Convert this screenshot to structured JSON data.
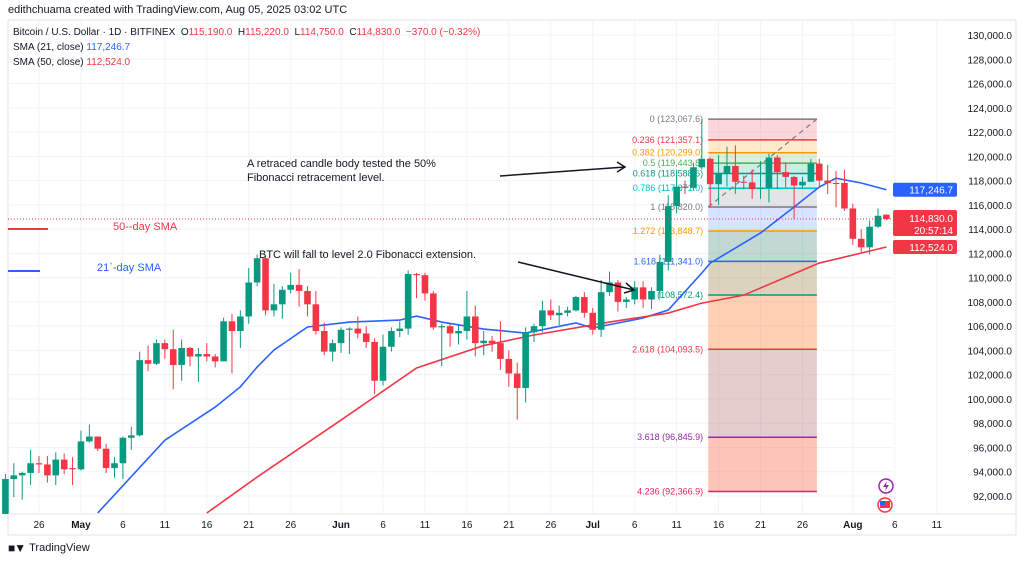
{
  "credit": "edithchuama created with TradingView.com, Aug 05, 2025 03:02 UTC",
  "legend": {
    "symbol": "Bitcoin / U.S. Dollar · 1D · BITFINEX",
    "o": "115,190.0",
    "h": "115,220.0",
    "l": "114,750.0",
    "c": "114,830.0",
    "change": "−370.0 (−0.32%)",
    "sma21_label": "SMA (21, close)",
    "sma21_value": "117,246.7",
    "sma50_label": "SMA (50, close)",
    "sma50_value": "112,524.0"
  },
  "footer": {
    "brand": "TradingView",
    "logo": "TV"
  },
  "colors": {
    "up": "#089981",
    "down": "#f23645",
    "sma21": "#2962ff",
    "sma50": "#f23645",
    "grid": "#f0f3fa"
  },
  "icons": [
    "lightning-event-icon",
    "us-flag-economic-event-icon"
  ],
  "chart_data": {
    "type": "candlestick",
    "ylim": [
      91000,
      131000
    ],
    "y_ticks": [
      130000,
      128000,
      126000,
      124000,
      122000,
      120000,
      118000,
      116000,
      114000,
      112000,
      110000,
      108000,
      106000,
      104000,
      102000,
      100000,
      98000,
      96000,
      94000,
      92000
    ],
    "y_tick_labels": [
      "130,000.0",
      "128,000.0",
      "126,000.0",
      "124,000.0",
      "122,000.0",
      "120,000.0",
      "118,000.0",
      "116,000.0",
      "114,000.0",
      "112,000.0",
      "110,000.0",
      "108,000.0",
      "106,000.0",
      "104,000.0",
      "102,000.0",
      "100,000.0",
      "98,000.0",
      "96,000.0",
      "94,000.0",
      "92,000.0"
    ],
    "x_ticks": [
      {
        "date": "2025-04-26",
        "label": "26"
      },
      {
        "date": "2025-05-01",
        "label": "May"
      },
      {
        "date": "2025-05-06",
        "label": "6"
      },
      {
        "date": "2025-05-11",
        "label": "11"
      },
      {
        "date": "2025-05-16",
        "label": "16"
      },
      {
        "date": "2025-05-21",
        "label": "21"
      },
      {
        "date": "2025-05-26",
        "label": "26"
      },
      {
        "date": "2025-06-01",
        "label": "Jun"
      },
      {
        "date": "2025-06-06",
        "label": "6"
      },
      {
        "date": "2025-06-11",
        "label": "11"
      },
      {
        "date": "2025-06-16",
        "label": "16"
      },
      {
        "date": "2025-06-21",
        "label": "21"
      },
      {
        "date": "2025-06-26",
        "label": "26"
      },
      {
        "date": "2025-07-01",
        "label": "Jul"
      },
      {
        "date": "2025-07-06",
        "label": "6"
      },
      {
        "date": "2025-07-11",
        "label": "11"
      },
      {
        "date": "2025-07-16",
        "label": "16"
      },
      {
        "date": "2025-07-21",
        "label": "21"
      },
      {
        "date": "2025-07-26",
        "label": "26"
      },
      {
        "date": "2025-08-01",
        "label": "Aug"
      },
      {
        "date": "2025-08-06",
        "label": "6"
      },
      {
        "date": "2025-08-11",
        "label": "11"
      }
    ],
    "candles_columns": [
      "date",
      "open",
      "high",
      "low",
      "close"
    ],
    "candles": [
      [
        "2025-04-22",
        87500,
        93800,
        87100,
        93400
      ],
      [
        "2025-04-23",
        93400,
        94700,
        91900,
        93700
      ],
      [
        "2025-04-24",
        93700,
        94000,
        91700,
        93900
      ],
      [
        "2025-04-25",
        93900,
        95800,
        92900,
        94700
      ],
      [
        "2025-04-26",
        94700,
        95300,
        93900,
        94600
      ],
      [
        "2025-04-27",
        94600,
        95300,
        93100,
        93700
      ],
      [
        "2025-04-28",
        93700,
        95600,
        92900,
        95000
      ],
      [
        "2025-04-29",
        95000,
        95500,
        93800,
        94200
      ],
      [
        "2025-04-30",
        94300,
        95200,
        92900,
        94200
      ],
      [
        "2025-05-01",
        94200,
        97400,
        94100,
        96500
      ],
      [
        "2025-05-02",
        96500,
        97900,
        96400,
        96900
      ],
      [
        "2025-05-03",
        96900,
        96900,
        95700,
        95900
      ],
      [
        "2025-05-04",
        95900,
        96300,
        93900,
        94300
      ],
      [
        "2025-05-05",
        94300,
        95200,
        93500,
        94700
      ],
      [
        "2025-05-06",
        94700,
        96900,
        93400,
        96800
      ],
      [
        "2025-05-07",
        96800,
        97700,
        95800,
        97000
      ],
      [
        "2025-05-08",
        97000,
        103900,
        96900,
        103200
      ],
      [
        "2025-05-09",
        103200,
        104400,
        102300,
        102900
      ],
      [
        "2025-05-10",
        102900,
        104900,
        102800,
        104600
      ],
      [
        "2025-05-11",
        104600,
        104900,
        103300,
        104100
      ],
      [
        "2025-05-12",
        104100,
        105700,
        100800,
        102800
      ],
      [
        "2025-05-13",
        102800,
        104900,
        101500,
        104200
      ],
      [
        "2025-05-14",
        104200,
        104300,
        102700,
        103500
      ],
      [
        "2025-05-15",
        103500,
        104200,
        101400,
        103700
      ],
      [
        "2025-05-16",
        103700,
        104600,
        103100,
        103500
      ],
      [
        "2025-05-17",
        103500,
        103700,
        102600,
        103100
      ],
      [
        "2025-05-18",
        103100,
        106700,
        103100,
        106400
      ],
      [
        "2025-05-19",
        106400,
        107000,
        102100,
        105600
      ],
      [
        "2025-05-20",
        105600,
        107300,
        104200,
        106800
      ],
      [
        "2025-05-21",
        106800,
        110800,
        106200,
        109600
      ],
      [
        "2025-05-22",
        109600,
        111900,
        109300,
        111600
      ],
      [
        "2025-05-23",
        111600,
        111800,
        106900,
        107300
      ],
      [
        "2025-05-24",
        107300,
        109500,
        106800,
        107800
      ],
      [
        "2025-05-25",
        107800,
        109300,
        106600,
        109000
      ],
      [
        "2025-05-26",
        109000,
        110400,
        108700,
        109400
      ],
      [
        "2025-05-27",
        109400,
        110700,
        107600,
        108900
      ],
      [
        "2025-05-28",
        108900,
        109300,
        106800,
        107800
      ],
      [
        "2025-05-29",
        107800,
        108900,
        105300,
        105600
      ],
      [
        "2025-05-30",
        105600,
        106300,
        103600,
        103900
      ],
      [
        "2025-05-31",
        103900,
        104900,
        103100,
        104600
      ],
      [
        "2025-06-01",
        104600,
        105900,
        103800,
        105700
      ],
      [
        "2025-06-02",
        105700,
        105900,
        103700,
        105800
      ],
      [
        "2025-06-03",
        105800,
        106800,
        105000,
        105400
      ],
      [
        "2025-06-04",
        105400,
        106000,
        104200,
        104700
      ],
      [
        "2025-06-05",
        104700,
        105000,
        100400,
        101500
      ],
      [
        "2025-06-06",
        101500,
        105300,
        101100,
        104300
      ],
      [
        "2025-06-07",
        104300,
        105900,
        103900,
        105600
      ],
      [
        "2025-06-08",
        105600,
        106400,
        105100,
        105800
      ],
      [
        "2025-06-09",
        105800,
        110600,
        105300,
        110300
      ],
      [
        "2025-06-10",
        110300,
        110400,
        108300,
        110200
      ],
      [
        "2025-06-11",
        110200,
        110400,
        108100,
        108700
      ],
      [
        "2025-06-12",
        108700,
        108900,
        105700,
        105900
      ],
      [
        "2025-06-13",
        105900,
        106200,
        102700,
        106000
      ],
      [
        "2025-06-14",
        106000,
        106200,
        104300,
        105400
      ],
      [
        "2025-06-15",
        105400,
        106100,
        104500,
        105600
      ],
      [
        "2025-06-16",
        105600,
        108900,
        104900,
        106800
      ],
      [
        "2025-06-17",
        106800,
        107700,
        103500,
        104600
      ],
      [
        "2025-06-18",
        104600,
        105600,
        103600,
        104800
      ],
      [
        "2025-06-19",
        104800,
        105200,
        103900,
        104600
      ],
      [
        "2025-06-20",
        104600,
        106400,
        102400,
        103300
      ],
      [
        "2025-06-21",
        103300,
        104000,
        101000,
        102100
      ],
      [
        "2025-06-22",
        102100,
        103000,
        98300,
        100900
      ],
      [
        "2025-06-23",
        100900,
        105900,
        99700,
        105500
      ],
      [
        "2025-06-24",
        105500,
        106200,
        104700,
        106000
      ],
      [
        "2025-06-25",
        106000,
        108100,
        105500,
        107300
      ],
      [
        "2025-06-26",
        107300,
        108200,
        106500,
        106900
      ],
      [
        "2025-06-27",
        106900,
        107700,
        106100,
        107100
      ],
      [
        "2025-06-28",
        107100,
        107600,
        106800,
        107300
      ],
      [
        "2025-06-29",
        107300,
        108500,
        107200,
        108400
      ],
      [
        "2025-06-30",
        108400,
        108800,
        106700,
        107100
      ],
      [
        "2025-07-01",
        107100,
        107500,
        105300,
        105700
      ],
      [
        "2025-07-02",
        105700,
        109800,
        105100,
        108800
      ],
      [
        "2025-07-03",
        108800,
        110500,
        108500,
        109600
      ],
      [
        "2025-07-04",
        109600,
        109800,
        107200,
        108000
      ],
      [
        "2025-07-05",
        108000,
        108400,
        107500,
        108200
      ],
      [
        "2025-07-06",
        108200,
        109700,
        107800,
        109200
      ],
      [
        "2025-07-07",
        109200,
        109700,
        107500,
        108200
      ],
      [
        "2025-07-08",
        108200,
        109200,
        107400,
        108900
      ],
      [
        "2025-07-09",
        108900,
        111900,
        108300,
        111300
      ],
      [
        "2025-07-10",
        111300,
        116800,
        110600,
        115900
      ],
      [
        "2025-07-11",
        115900,
        118900,
        115300,
        117500
      ],
      [
        "2025-07-12",
        117500,
        118000,
        116900,
        117400
      ],
      [
        "2025-07-13",
        117400,
        119500,
        117200,
        119100
      ],
      [
        "2025-07-14",
        119100,
        123067,
        118900,
        119800
      ],
      [
        "2025-07-15",
        119800,
        119900,
        115800,
        117700
      ],
      [
        "2025-07-16",
        117700,
        120100,
        116000,
        118600
      ],
      [
        "2025-07-17",
        118600,
        120800,
        117500,
        119200
      ],
      [
        "2025-07-18",
        119200,
        120900,
        116900,
        117900
      ],
      [
        "2025-07-19",
        117900,
        118400,
        117300,
        117850
      ],
      [
        "2025-07-20",
        117850,
        118900,
        116500,
        117300
      ],
      [
        "2025-07-21",
        117300,
        119600,
        116500,
        117400
      ],
      [
        "2025-07-22",
        117400,
        120200,
        116200,
        119900
      ],
      [
        "2025-07-23",
        119900,
        120100,
        117300,
        118700
      ],
      [
        "2025-07-24",
        118700,
        119500,
        117400,
        118300
      ],
      [
        "2025-07-25",
        118300,
        118400,
        114800,
        117600
      ],
      [
        "2025-07-26",
        117600,
        118300,
        117300,
        117900
      ],
      [
        "2025-07-27",
        117900,
        119800,
        117900,
        119400
      ],
      [
        "2025-07-28",
        119400,
        119800,
        117400,
        118000
      ],
      [
        "2025-07-29",
        118000,
        119300,
        116900,
        117800
      ],
      [
        "2025-07-30",
        117800,
        118800,
        115800,
        117750
      ],
      [
        "2025-07-31",
        117800,
        118900,
        115500,
        115700
      ],
      [
        "2025-08-01",
        115700,
        116100,
        112700,
        113200
      ],
      [
        "2025-08-02",
        113200,
        114000,
        112000,
        112500
      ],
      [
        "2025-08-03",
        112500,
        114700,
        111900,
        114200
      ],
      [
        "2025-08-04",
        114200,
        115700,
        114100,
        115100
      ],
      [
        "2025-08-05",
        115190,
        115220,
        114750,
        114830
      ]
    ],
    "sma21": [
      [
        "2025-05-03",
        90600
      ],
      [
        "2025-05-11",
        96600
      ],
      [
        "2025-05-17",
        99330
      ],
      [
        "2025-05-20",
        101000
      ],
      [
        "2025-05-22",
        102630
      ],
      [
        "2025-05-24",
        104030
      ],
      [
        "2025-05-28",
        105930
      ],
      [
        "2025-06-02",
        106340
      ],
      [
        "2025-06-08",
        106500
      ],
      [
        "2025-06-10",
        106830
      ],
      [
        "2025-06-13",
        106340
      ],
      [
        "2025-06-18",
        105760
      ],
      [
        "2025-06-23",
        105430
      ],
      [
        "2025-06-29",
        106260
      ],
      [
        "2025-07-01",
        105850
      ],
      [
        "2025-07-07",
        106670
      ],
      [
        "2025-07-10",
        107330
      ],
      [
        "2025-07-14",
        110380
      ],
      [
        "2025-07-15",
        111200
      ],
      [
        "2025-07-21",
        113680
      ],
      [
        "2025-07-25",
        115820
      ],
      [
        "2025-07-28",
        117470
      ],
      [
        "2025-07-30",
        118200
      ],
      [
        "2025-08-02",
        117800
      ],
      [
        "2025-08-05",
        117246.7
      ]
    ],
    "sma50": [
      [
        "2025-05-16",
        90600
      ],
      [
        "2025-05-22",
        93560
      ],
      [
        "2025-06-01",
        98260
      ],
      [
        "2025-06-10",
        102550
      ],
      [
        "2025-06-18",
        104400
      ],
      [
        "2025-06-24",
        105270
      ],
      [
        "2025-07-03",
        106340
      ],
      [
        "2025-07-10",
        107080
      ],
      [
        "2025-07-14",
        107900
      ],
      [
        "2025-07-19",
        108560
      ],
      [
        "2025-07-28",
        111200
      ],
      [
        "2025-08-05",
        112524
      ]
    ],
    "last_price": {
      "value": 114830,
      "label": "114,830.0",
      "countdown": "20:57:14"
    },
    "price_tags": [
      {
        "value": 117246.7,
        "label": "117,246.7",
        "color": "#2962ff"
      },
      {
        "value": 112524,
        "label": "112,524.0",
        "color": "#f23645"
      }
    ],
    "fibonacci": {
      "start_date": "2025-07-15",
      "end_date": "2025-07-27",
      "trend_from": {
        "date": "2025-07-15",
        "price": 115820
      },
      "trend_to": {
        "date": "2025-07-27",
        "price": 123067.6
      },
      "levels": [
        {
          "ratio": "0",
          "price": 123067.6,
          "label": "0 (123,067.6)",
          "color": "#787b86",
          "fill": "rgba(242,54,69,0.2)"
        },
        {
          "ratio": "0.236",
          "price": 121357.1,
          "label": "0.236 (121,357.1)",
          "color": "#f23645",
          "fill": "rgba(255,152,0,0.2)"
        },
        {
          "ratio": "0.382",
          "price": 120299.0,
          "label": "0.382 (120,299.0)",
          "color": "#ff9800",
          "fill": "rgba(76,175,80,0.2)"
        },
        {
          "ratio": "0.5",
          "price": 119443.8,
          "label": "0.5 (119,443.8)",
          "color": "#4caf50",
          "fill": "rgba(8,153,129,0.2)"
        },
        {
          "ratio": "0.618",
          "price": 118588.6,
          "label": "0.618 (118,588.6)",
          "color": "#089981",
          "fill": "rgba(0,188,212,0.2)"
        },
        {
          "ratio": "0.786",
          "price": 117371.0,
          "label": "0.786 (117,371.0)",
          "color": "#00bcd4",
          "fill": "rgba(120,123,134,0.2)"
        },
        {
          "ratio": "1",
          "price": 115820.0,
          "label": "1 (115,820.0)",
          "color": "#787b86",
          "fill": "rgba(41,98,255,0.18)"
        },
        {
          "ratio": "1.272",
          "price": 113848.7,
          "label": "1.272 (113,848.7)",
          "color": "#ff9800",
          "fill": "rgba(8,100,80,0.25)"
        },
        {
          "ratio": "1.618",
          "price": 111341.0,
          "label": "1.618 (111,341.0)",
          "color": "#2962ff",
          "fill": "rgba(140,110,40,0.3)"
        },
        {
          "ratio": "2",
          "price": 108572.4,
          "label": "(108,572.4)",
          "color": "#089981",
          "fill": "rgba(255,120,40,0.35)"
        },
        {
          "ratio": "2.618",
          "price": 104093.5,
          "label": "2.618 (104,093.5)",
          "color": "#f23645",
          "fill": "rgba(170,90,90,0.3)"
        },
        {
          "ratio": "3.618",
          "price": 96845.9,
          "label": "3.618 (96,845.9)",
          "color": "#9c27b0",
          "fill": "rgba(250,110,80,0.4)"
        },
        {
          "ratio": "4.236",
          "price": 92366.9,
          "label": "4.236 (92,366.9)",
          "color": "#e91e63",
          "fill": null
        }
      ]
    },
    "annotations": [
      {
        "lines": [
          "A retraced candle body tested the 50%",
          " Fibonacci retracement level."
        ]
      },
      {
        "lines": [
          "BTC  will fall to level 2.0 Fibonacci extension."
        ]
      }
    ],
    "series_labels": {
      "sma50": "50--day SMA",
      "sma21": "21`-day SMA"
    }
  }
}
